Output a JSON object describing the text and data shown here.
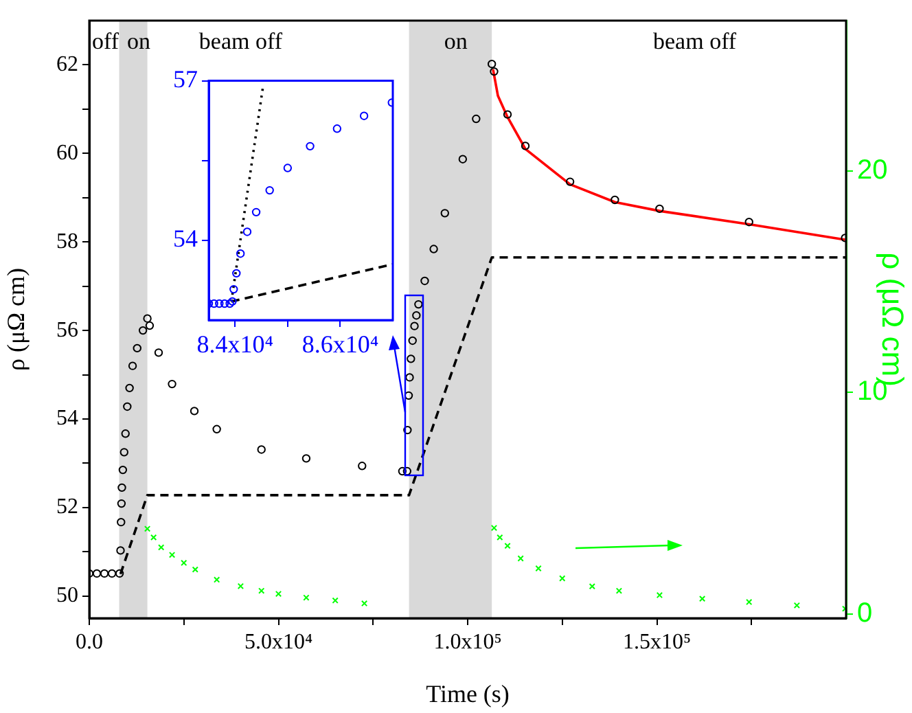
{
  "chart_data": [
    {
      "type": "scatter",
      "xlabel": "Time (s)",
      "ylabel": "ρ (μΩ cm)",
      "y2label": "ρ (μΩ cm)",
      "xlim": [
        0,
        200000
      ],
      "xticks": [
        {
          "value": 0,
          "label": "0.0"
        },
        {
          "value": 25000,
          "label": null
        },
        {
          "value": 50000,
          "label": "5.0x10⁴"
        },
        {
          "value": 75000,
          "label": null
        },
        {
          "value": 100000,
          "label": "1.0x10⁵"
        },
        {
          "value": 125000,
          "label": null
        },
        {
          "value": 150000,
          "label": "1.5x10⁵"
        },
        {
          "value": 175000,
          "label": null
        }
      ],
      "ylim": [
        49.5,
        63
      ],
      "yticks": [
        50,
        {
          "value": 51,
          "label": null
        },
        52,
        {
          "value": 53,
          "label": null
        },
        54,
        {
          "value": 55,
          "label": null
        },
        56,
        {
          "value": 57,
          "label": null
        },
        58,
        {
          "value": 59,
          "label": null
        },
        60,
        {
          "value": 61,
          "label": null
        },
        62
      ],
      "y2lim": [
        -0.2,
        26.8
      ],
      "y2ticks": [
        0,
        10,
        20
      ],
      "grid": false,
      "legend": false,
      "bands": [
        {
          "axis": "x",
          "from": 7900,
          "to": 15350,
          "label": "on",
          "color": "#d9d9d9"
        },
        {
          "axis": "x",
          "from": 84500,
          "to": 106380,
          "label": "on",
          "color": "#d9d9d9"
        }
      ],
      "annotations": [
        "off",
        "beam off",
        "beam off"
      ],
      "series": [
        {
          "type": "scatter",
          "marker": "circle",
          "color": "#000000",
          "x": [
            0,
            2000,
            4000,
            6000,
            8000,
            8260,
            8400,
            8510,
            8620,
            8870,
            9220,
            9570,
            10040,
            10640,
            11450,
            12660,
            14180,
            15350,
            15960,
            18330,
            21880,
            27770,
            33690,
            45500,
            57340,
            72100,
            82740,
            84000,
            84100,
            84400,
            84660,
            85000,
            85430,
            85940,
            86450,
            87000,
            88650,
            91030,
            93970,
            98700,
            102240,
            106380,
            106980,
            110530,
            115250,
            127060,
            138900,
            150710,
            174360,
            199750
          ],
          "values": [
            50.51,
            50.51,
            50.51,
            50.51,
            50.51,
            51.03,
            51.67,
            52.09,
            52.45,
            52.85,
            53.25,
            53.67,
            54.28,
            54.7,
            55.2,
            55.6,
            56.0,
            56.27,
            56.11,
            55.5,
            54.79,
            54.18,
            53.77,
            53.31,
            53.11,
            52.94,
            52.82,
            52.82,
            53.75,
            54.53,
            54.94,
            55.36,
            55.77,
            56.1,
            56.34,
            56.59,
            57.12,
            57.84,
            58.65,
            59.87,
            60.78,
            62.02,
            61.85,
            60.88,
            60.17,
            59.36,
            58.95,
            58.75,
            58.45,
            58.09
          ]
        },
        {
          "type": "line",
          "line_style": "solid",
          "color": "#ff0000",
          "x": [
            106700,
            108000,
            110530,
            115250,
            127060,
            138900,
            150710,
            174360,
            199750
          ],
          "values": [
            61.9,
            61.3,
            60.82,
            60.1,
            59.3,
            58.9,
            58.7,
            58.4,
            58.05
          ]
        },
        {
          "type": "line",
          "line_style": "dashed",
          "color": "#000000",
          "x": [
            8260,
            15350,
            84500,
            106380,
            200000
          ],
          "values": [
            50.5,
            52.28,
            52.28,
            57.65,
            57.65
          ]
        },
        {
          "type": "scatter",
          "marker": "cross",
          "axis": "y2",
          "color": "#00ff00",
          "x": [
            15350,
            17000,
            19000,
            21880,
            25000,
            28000,
            33690,
            40000,
            45500,
            50000,
            57340,
            65000,
            72700,
            106980,
            108500,
            110530,
            114000,
            118700,
            125000,
            132900,
            140000,
            150710,
            162000,
            174360,
            187000,
            199750
          ],
          "values": [
            3.84,
            3.45,
            3.0,
            2.66,
            2.3,
            2.0,
            1.54,
            1.25,
            1.04,
            0.9,
            0.73,
            0.6,
            0.47,
            3.88,
            3.45,
            3.07,
            2.5,
            2.05,
            1.6,
            1.24,
            1.04,
            0.84,
            0.68,
            0.53,
            0.38,
            0.23
          ]
        }
      ]
    },
    {
      "type": "scatter",
      "xlim": [
        83500,
        87000
      ],
      "xticks": [
        {
          "value": 84000,
          "label": "8.4x10⁴"
        },
        {
          "value": 85000,
          "label": null
        },
        {
          "value": 86000,
          "label": "8.6x10⁴"
        }
      ],
      "ylim": [
        52.5,
        57
      ],
      "yticks": [
        54,
        {
          "value": 55.5,
          "label": null
        },
        57
      ],
      "grid": false,
      "legend": false,
      "series": [
        {
          "type": "scatter",
          "marker": "circle",
          "color": "#0000ff",
          "x": [
            83500,
            83600,
            83700,
            83800,
            83900,
            83949,
            83974,
            84026,
            84103,
            84231,
            84402,
            84658,
            85000,
            85427,
            85940,
            86453,
            86983
          ],
          "values": [
            52.81,
            52.81,
            52.81,
            52.81,
            52.81,
            52.85,
            53.08,
            53.38,
            53.75,
            54.16,
            54.53,
            54.94,
            55.36,
            55.77,
            56.1,
            56.34,
            56.59
          ]
        },
        {
          "type": "line",
          "line_style": "dotted",
          "color": "#000000",
          "x": [
            83930,
            84530
          ],
          "values": [
            52.85,
            56.88
          ]
        },
        {
          "type": "line",
          "line_style": "dashed",
          "color": "#000000",
          "x": [
            83930,
            87000
          ],
          "values": [
            52.85,
            53.55
          ]
        }
      ]
    }
  ]
}
